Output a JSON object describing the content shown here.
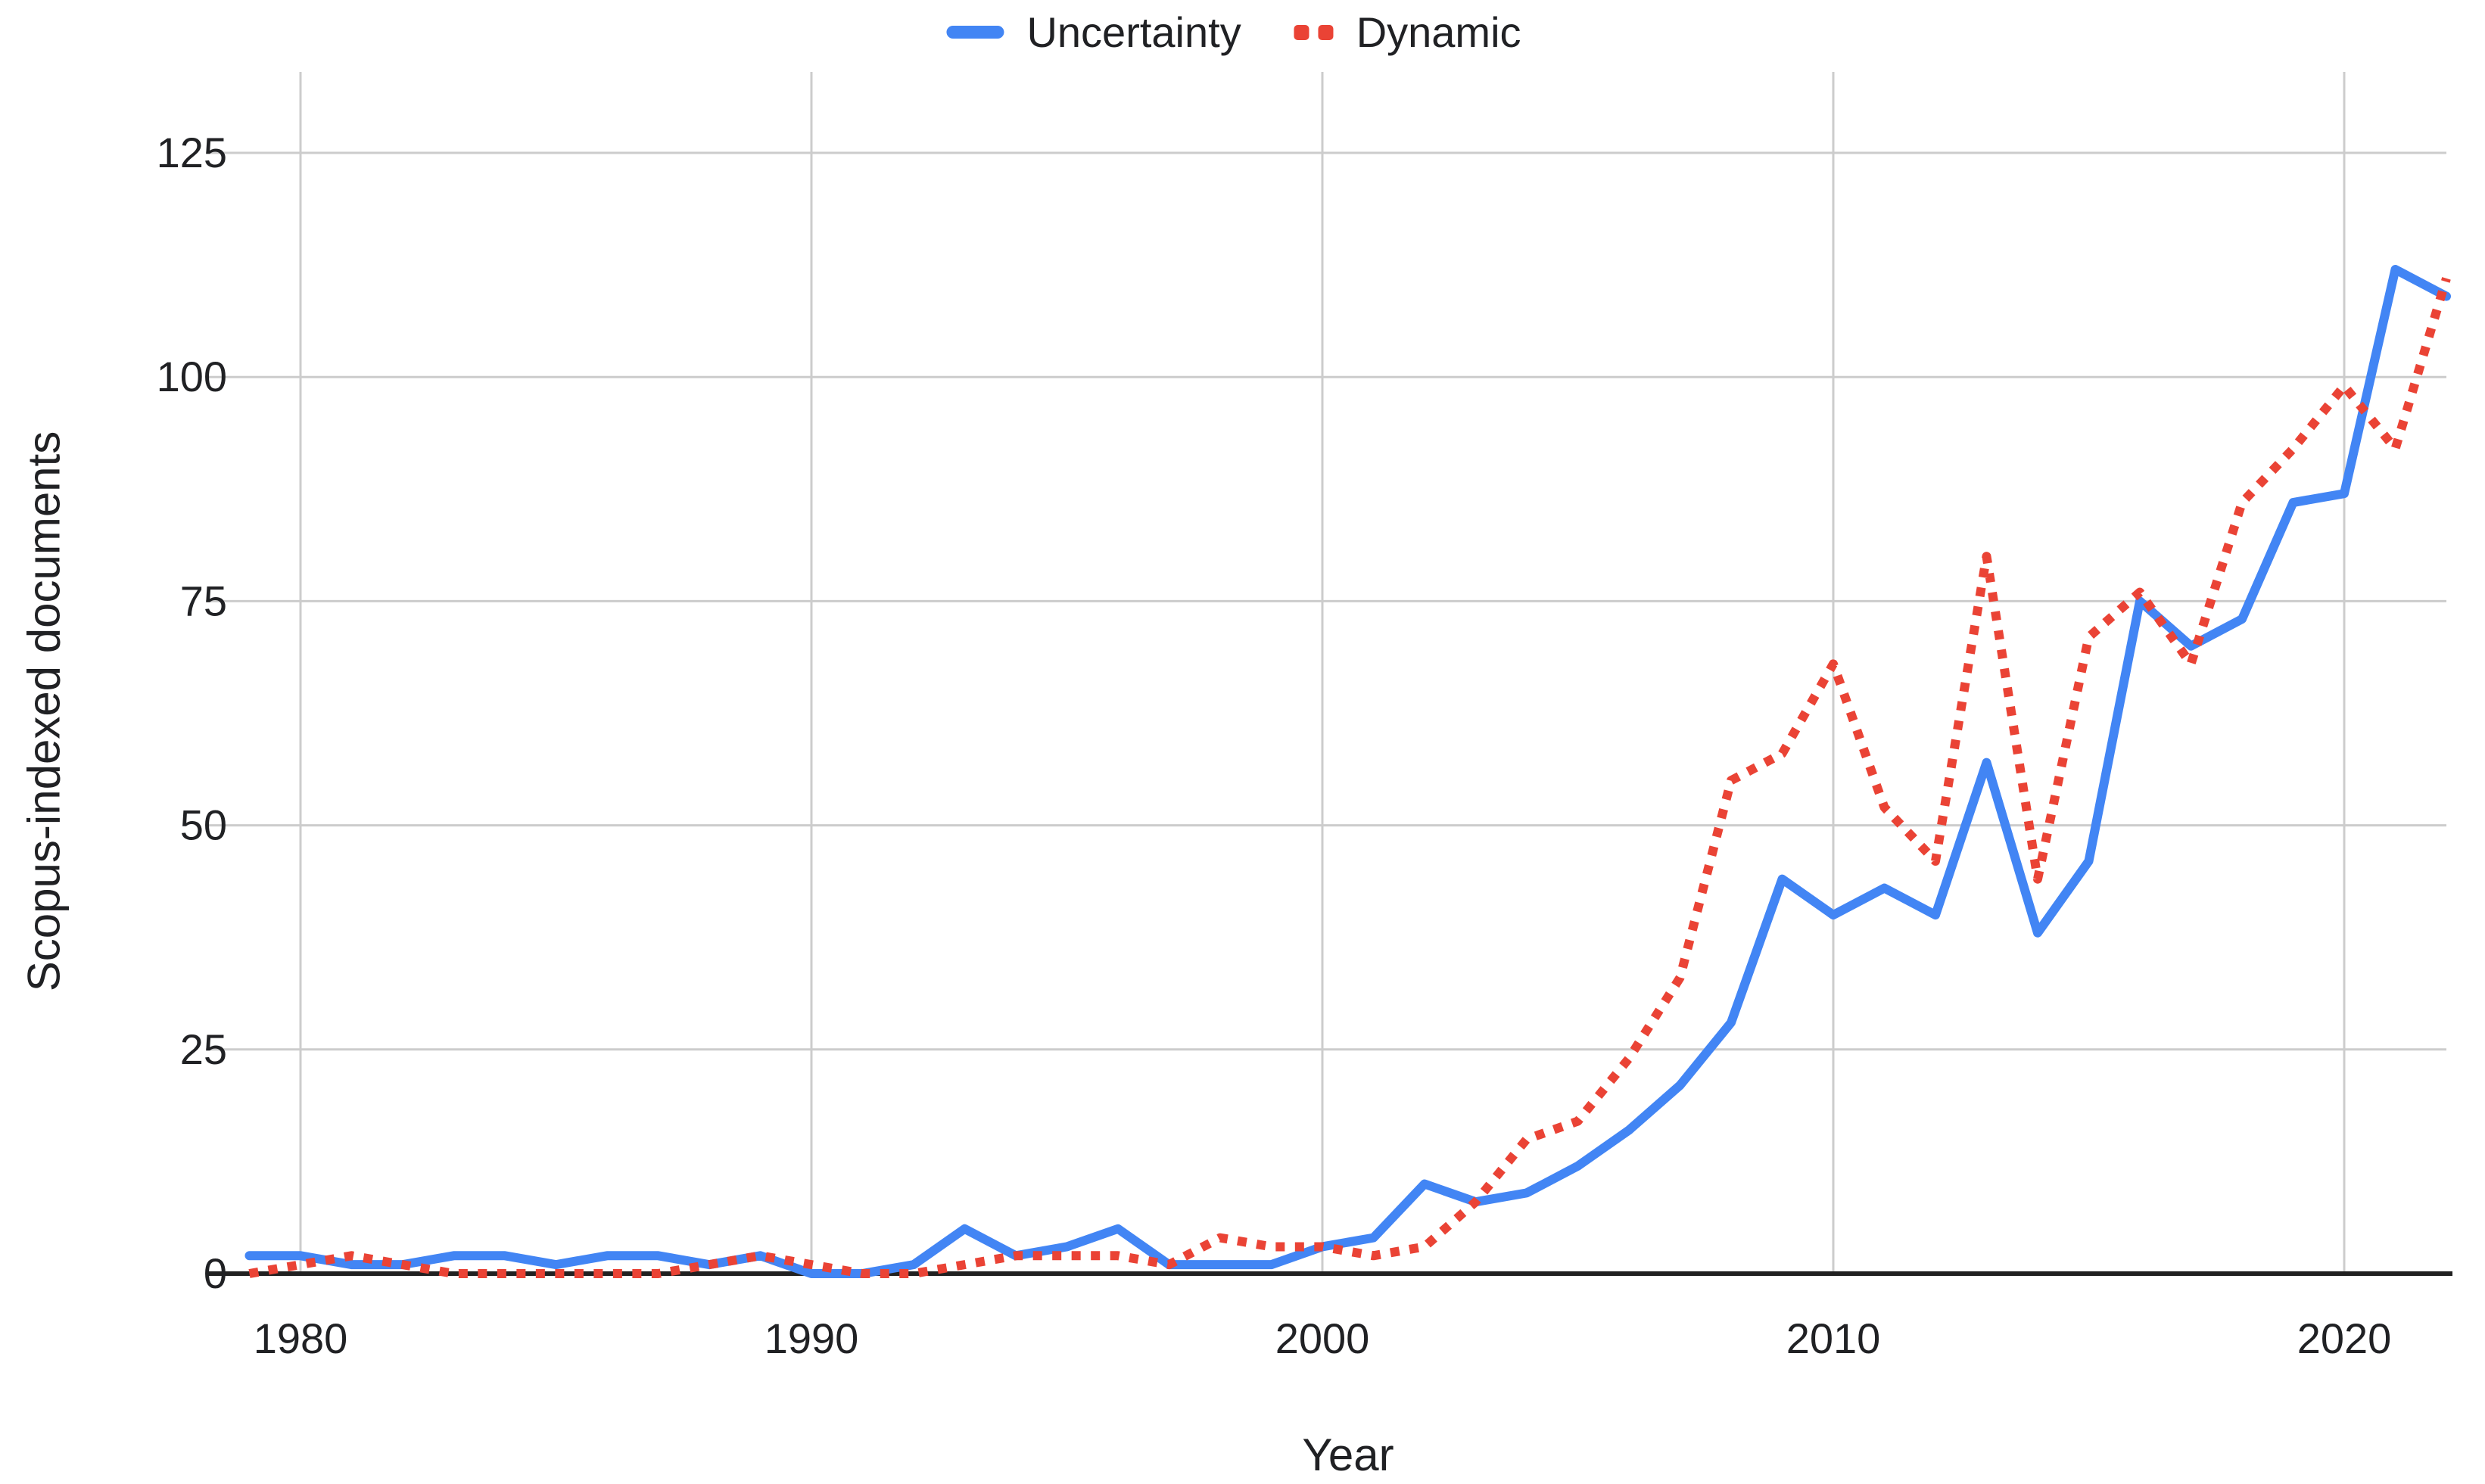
{
  "legend": {
    "items": [
      {
        "label": "Uncertainty",
        "color": "#4285F4",
        "style": "solid"
      },
      {
        "label": "Dynamic",
        "color": "#EA4335",
        "style": "dotted"
      }
    ]
  },
  "chart_data": {
    "type": "line",
    "title": "",
    "xlabel": "Year",
    "ylabel": "Scopus-indexed documents",
    "x": [
      1979,
      1980,
      1981,
      1982,
      1983,
      1984,
      1985,
      1986,
      1987,
      1988,
      1989,
      1990,
      1991,
      1992,
      1993,
      1994,
      1995,
      1996,
      1997,
      1998,
      1999,
      2000,
      2001,
      2002,
      2003,
      2004,
      2005,
      2006,
      2007,
      2008,
      2009,
      2010,
      2011,
      2012,
      2013,
      2014,
      2015,
      2016,
      2017,
      2018,
      2019,
      2020,
      2021,
      2022
    ],
    "series": [
      {
        "name": "Uncertainty",
        "color": "#4285F4",
        "line_style": "solid",
        "values": [
          2,
          2,
          1,
          1,
          2,
          2,
          1,
          2,
          2,
          1,
          2,
          0,
          0,
          1,
          5,
          2,
          3,
          5,
          1,
          1,
          1,
          3,
          4,
          10,
          8,
          9,
          12,
          16,
          21,
          28,
          44,
          40,
          43,
          40,
          57,
          38,
          46,
          75,
          70,
          73,
          86,
          87,
          112,
          109
        ]
      },
      {
        "name": "Dynamic",
        "color": "#EA4335",
        "line_style": "dotted",
        "values": [
          0,
          1,
          2,
          1,
          0,
          0,
          0,
          0,
          0,
          1,
          2,
          1,
          0,
          0,
          1,
          2,
          2,
          2,
          1,
          4,
          3,
          3,
          2,
          3,
          8,
          15,
          17,
          24,
          33,
          55,
          58,
          68,
          52,
          46,
          80,
          44,
          71,
          76,
          68,
          86,
          92,
          99,
          92,
          111
        ]
      }
    ],
    "xticks": [
      1980,
      1990,
      2000,
      2010,
      2020
    ],
    "yticks": [
      0,
      25,
      50,
      75,
      100,
      125
    ],
    "xlim": [
      1979,
      2022
    ],
    "ylim": [
      0,
      125
    ],
    "grid": "on",
    "legend_position": "top-center",
    "grid_color": "#cccccc",
    "axis_color": "#212121",
    "text_color": "#202124",
    "background": "#ffffff"
  }
}
